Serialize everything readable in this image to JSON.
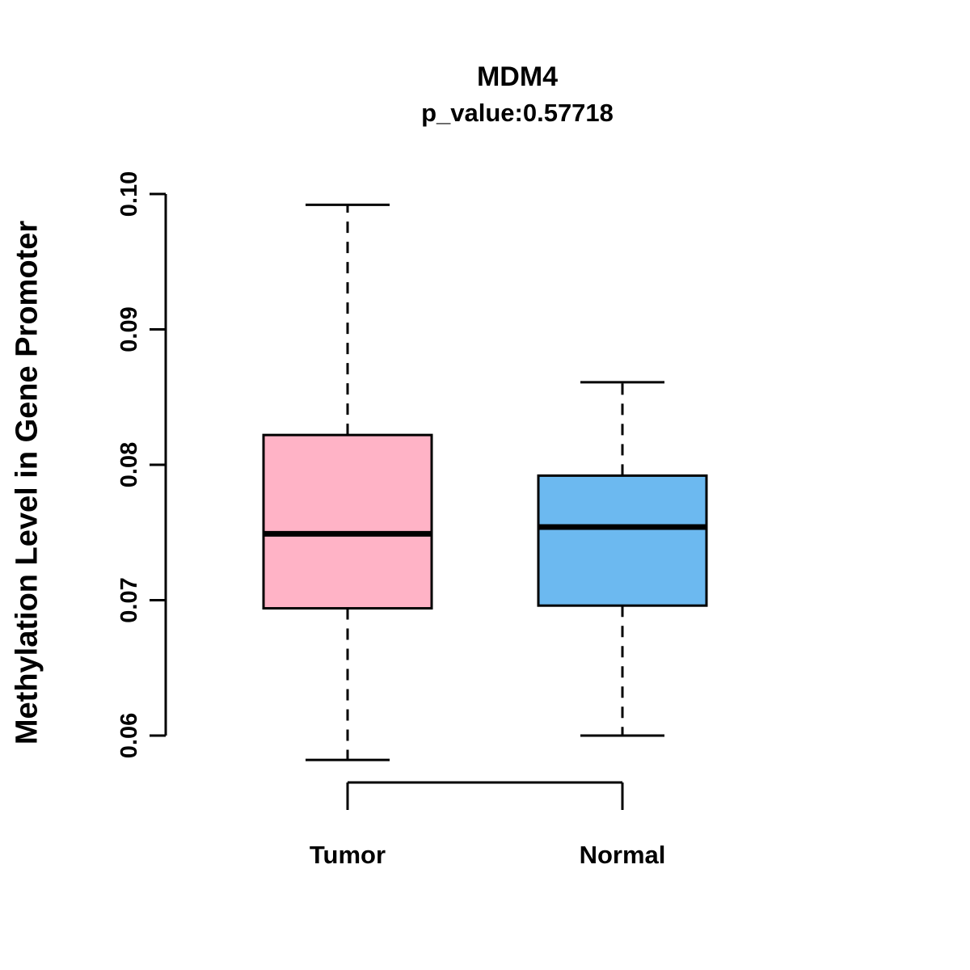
{
  "chart_data": {
    "type": "boxplot",
    "title": "MDM4",
    "subtitle": "p_value:0.57718",
    "ylabel": "Methylation Level in Gene Promoter",
    "xlabel": "",
    "ylim": [
      0.06,
      0.1
    ],
    "yticks": [
      0.06,
      0.07,
      0.08,
      0.09,
      0.1
    ],
    "ytick_labels": [
      "0.06",
      "0.07",
      "0.08",
      "0.09",
      "0.10"
    ],
    "grid": false,
    "legend": "none",
    "axis_color": "#000000",
    "categories": [
      "Tumor",
      "Normal"
    ],
    "series": [
      {
        "name": "Tumor",
        "color": "#FFB3C6",
        "whisker_low": 0.0582,
        "q1": 0.0694,
        "median": 0.0749,
        "q3": 0.0822,
        "whisker_high": 0.0992
      },
      {
        "name": "Normal",
        "color": "#6CB9F0",
        "whisker_low": 0.06,
        "q1": 0.0696,
        "median": 0.0754,
        "q3": 0.0792,
        "whisker_high": 0.0861
      }
    ]
  }
}
